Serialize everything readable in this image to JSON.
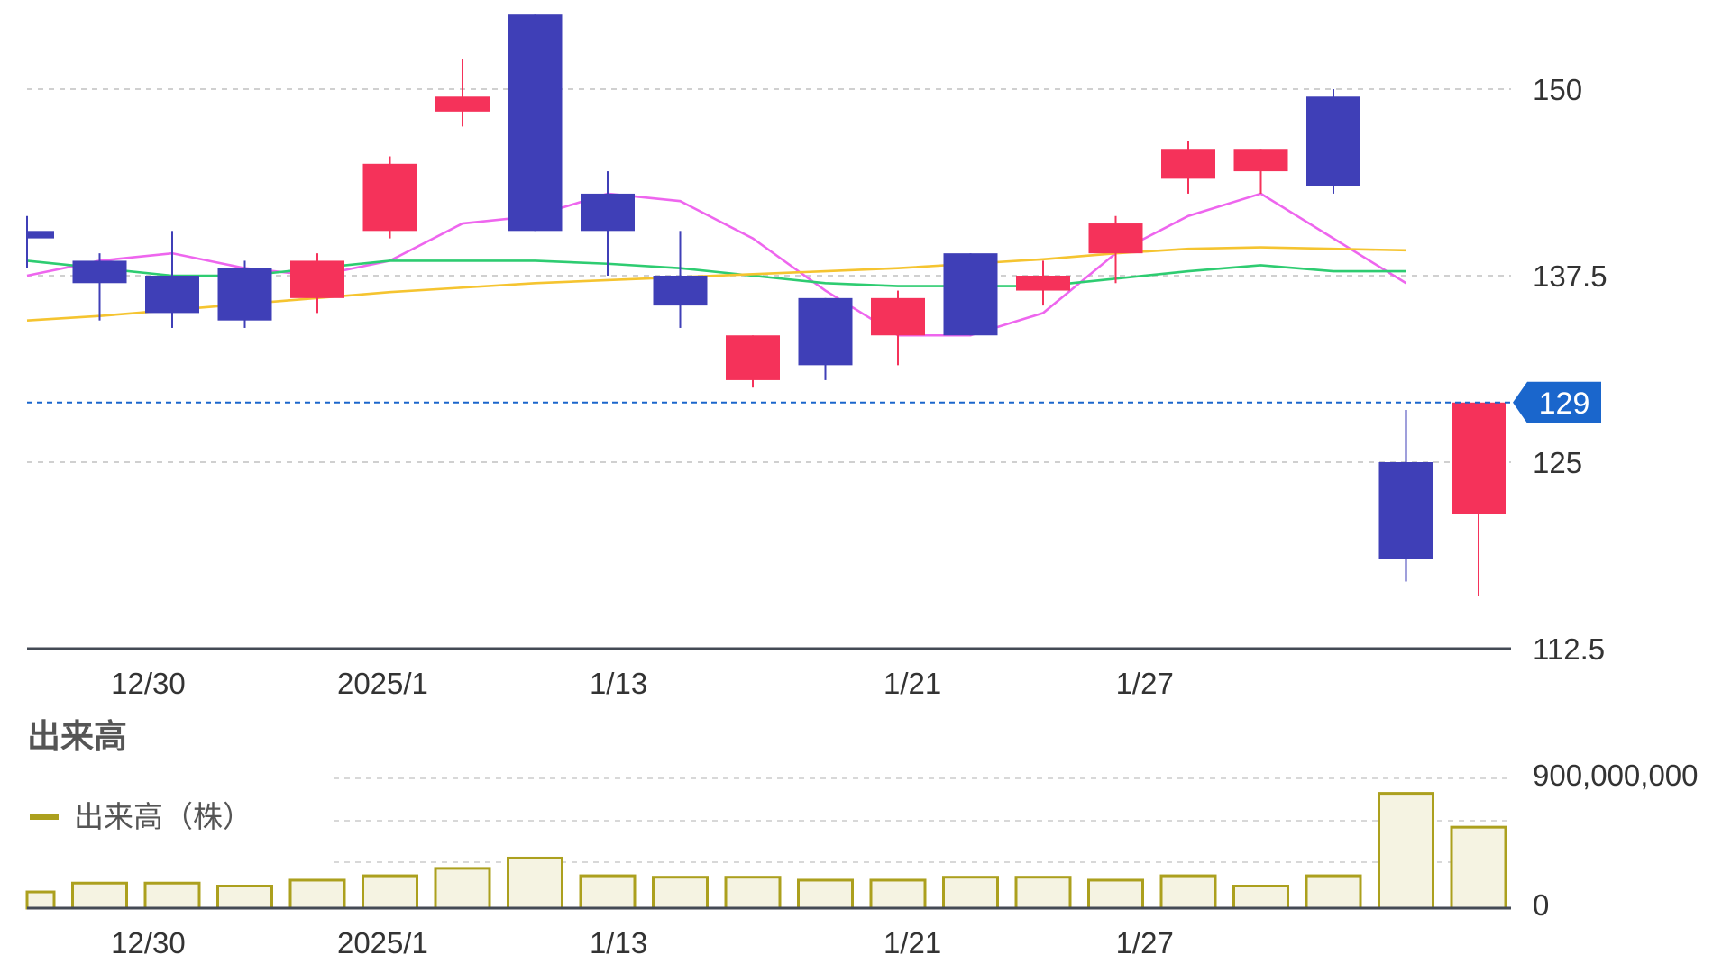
{
  "chart_data": [
    {
      "type": "candlestick",
      "x_labels": [
        "12/30",
        "2025/1",
        "1/13",
        "1/21",
        "1/27"
      ],
      "y_ticks": [
        112.5,
        125,
        137.5,
        150
      ],
      "y_tick_labels": [
        "112.5",
        "125",
        "137.5",
        "150"
      ],
      "ylim": [
        112.5,
        153
      ],
      "grid": true,
      "current_price": 129,
      "current_price_label": "129",
      "colors": {
        "up": "#f5325a",
        "down": "#3f3fb7",
        "ma5": "#ee66ee",
        "ma25": "#2ecc71",
        "ma75": "#f5c430",
        "current": "#1a66cc"
      },
      "candles": [
        {
          "o": 140.5,
          "h": 141.5,
          "l": 138.0,
          "c": 140.0
        },
        {
          "o": 138.5,
          "h": 139.0,
          "l": 134.5,
          "c": 137.0
        },
        {
          "o": 137.5,
          "h": 140.5,
          "l": 134.0,
          "c": 135.0
        },
        {
          "o": 138.0,
          "h": 138.5,
          "l": 134.0,
          "c": 134.5
        },
        {
          "o": 136.0,
          "h": 139.0,
          "l": 135.0,
          "c": 138.5
        },
        {
          "o": 140.5,
          "h": 145.5,
          "l": 140.0,
          "c": 145.0
        },
        {
          "o": 148.5,
          "h": 152.0,
          "l": 147.5,
          "c": 149.5
        },
        {
          "o": 155.0,
          "h": 155.0,
          "l": 140.5,
          "c": 140.5
        },
        {
          "o": 143.0,
          "h": 144.5,
          "l": 137.5,
          "c": 140.5
        },
        {
          "o": 137.5,
          "h": 140.5,
          "l": 134.0,
          "c": 135.5
        },
        {
          "o": 130.5,
          "h": 133.5,
          "l": 130.0,
          "c": 133.5
        },
        {
          "o": 136.0,
          "h": 136.0,
          "l": 130.5,
          "c": 131.5
        },
        {
          "o": 133.5,
          "h": 136.5,
          "l": 131.5,
          "c": 136.0
        },
        {
          "o": 139.0,
          "h": 139.0,
          "l": 133.5,
          "c": 133.5
        },
        {
          "o": 136.5,
          "h": 138.5,
          "l": 135.5,
          "c": 137.5
        },
        {
          "o": 139.0,
          "h": 141.5,
          "l": 137.0,
          "c": 141.0
        },
        {
          "o": 144.0,
          "h": 146.5,
          "l": 143.0,
          "c": 146.0
        },
        {
          "o": 144.5,
          "h": 146.0,
          "l": 143.0,
          "c": 146.0
        },
        {
          "o": 149.5,
          "h": 150.0,
          "l": 143.0,
          "c": 143.5
        },
        {
          "o": 125.0,
          "h": 128.5,
          "l": 117.0,
          "c": 118.5
        },
        {
          "o": 121.5,
          "h": 129.0,
          "l": 116.0,
          "c": 129.0
        }
      ],
      "ma_lines": [
        {
          "key": "ma5",
          "values": [
            137.5,
            138.5,
            139.0,
            138.0,
            137.5,
            138.5,
            141.0,
            141.5,
            143.0,
            142.5,
            140.0,
            136.5,
            133.5,
            133.5,
            135.0,
            139.0,
            141.5,
            143.0,
            140.0,
            137.0
          ]
        },
        {
          "key": "ma25",
          "values": [
            138.5,
            138.0,
            137.5,
            137.5,
            138.0,
            138.5,
            138.5,
            138.5,
            138.3,
            138.0,
            137.5,
            137.0,
            136.8,
            136.8,
            136.8,
            137.3,
            137.8,
            138.2,
            137.8,
            137.8
          ]
        },
        {
          "key": "ma75",
          "values": [
            134.5,
            134.8,
            135.2,
            135.6,
            136.0,
            136.4,
            136.7,
            137.0,
            137.2,
            137.4,
            137.6,
            137.8,
            138.0,
            138.3,
            138.6,
            139.0,
            139.3,
            139.4,
            139.3,
            139.2
          ]
        }
      ]
    },
    {
      "type": "bar",
      "title": "出来高",
      "legend": "出来高（株）",
      "legend_color": "#aca01e",
      "fill_color": "#f5f3e2",
      "x_labels": [
        "12/30",
        "2025/1",
        "1/13",
        "1/21",
        "1/27"
      ],
      "y_tick_labels": [
        "0",
        "900,000,000"
      ],
      "ylim": [
        0,
        900000000
      ],
      "values": [
        110000000,
        170000000,
        170000000,
        150000000,
        190000000,
        220000000,
        270000000,
        340000000,
        220000000,
        210000000,
        210000000,
        190000000,
        190000000,
        210000000,
        210000000,
        190000000,
        220000000,
        150000000,
        220000000,
        780000000,
        550000000
      ]
    }
  ]
}
